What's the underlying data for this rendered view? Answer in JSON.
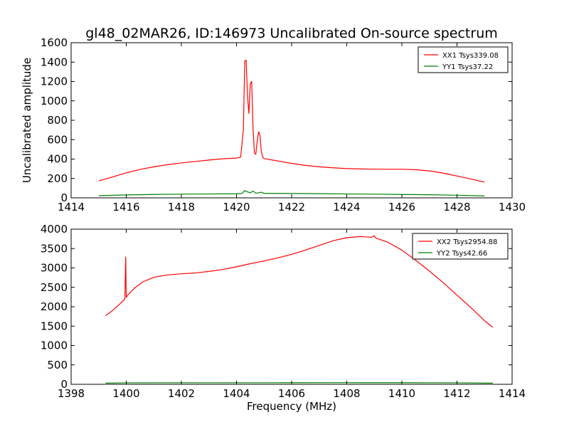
{
  "chart_data": [
    {
      "type": "line",
      "title": "gl48_02MAR26, ID:146973 Uncalibrated On-source spectrum",
      "xlabel": "",
      "ylabel": "Uncalibrated amplitude",
      "xlim": [
        1414,
        1430
      ],
      "ylim": [
        0,
        1600
      ],
      "xticks": [
        1414,
        1416,
        1418,
        1420,
        1422,
        1424,
        1426,
        1428,
        1430
      ],
      "yticks": [
        0,
        200,
        400,
        600,
        800,
        1000,
        1200,
        1400,
        1600
      ],
      "legend_position": "top-right",
      "series": [
        {
          "name": "XX1 Tsys339.08",
          "color": "#ff0000",
          "x": [
            1415.0,
            1415.5,
            1416.0,
            1416.5,
            1417.0,
            1417.5,
            1418.0,
            1418.5,
            1419.0,
            1419.5,
            1420.0,
            1420.15,
            1420.25,
            1420.3,
            1420.35,
            1420.4,
            1420.45,
            1420.5,
            1420.55,
            1420.6,
            1420.65,
            1420.7,
            1420.75,
            1420.8,
            1420.85,
            1420.9,
            1420.95,
            1421.0,
            1421.2,
            1421.5,
            1422.0,
            1422.5,
            1423.0,
            1423.5,
            1424.0,
            1424.5,
            1425.0,
            1425.5,
            1426.0,
            1426.5,
            1427.0,
            1427.5,
            1428.0,
            1428.5,
            1429.0
          ],
          "y": [
            175,
            215,
            258,
            293,
            320,
            342,
            360,
            375,
            390,
            403,
            410,
            420,
            700,
            1410,
            1420,
            1050,
            870,
            1180,
            1200,
            720,
            460,
            450,
            580,
            680,
            650,
            480,
            420,
            405,
            395,
            380,
            355,
            335,
            320,
            310,
            302,
            298,
            296,
            295,
            295,
            290,
            278,
            255,
            225,
            195,
            162
          ]
        },
        {
          "name": "YY1 Tsys37.22",
          "color": "#008000",
          "x": [
            1415.0,
            1416.0,
            1417.0,
            1418.0,
            1419.0,
            1420.0,
            1420.2,
            1420.3,
            1420.4,
            1420.5,
            1420.6,
            1420.7,
            1420.8,
            1420.9,
            1421.0,
            1422.0,
            1423.0,
            1424.0,
            1425.0,
            1426.0,
            1427.0,
            1428.0,
            1429.0
          ],
          "y": [
            22,
            30,
            35,
            38,
            40,
            42,
            45,
            75,
            62,
            52,
            70,
            48,
            52,
            58,
            46,
            45,
            43,
            40,
            38,
            35,
            32,
            27,
            20
          ]
        }
      ]
    },
    {
      "type": "line",
      "title": "",
      "xlabel": "Frequency (MHz)",
      "ylabel": "",
      "xlim": [
        1398,
        1414
      ],
      "ylim": [
        0,
        4000
      ],
      "xticks": [
        1398,
        1400,
        1402,
        1404,
        1406,
        1408,
        1410,
        1412,
        1414
      ],
      "yticks": [
        0,
        500,
        1000,
        1500,
        2000,
        2500,
        3000,
        3500,
        4000
      ],
      "legend_position": "top-right",
      "series": [
        {
          "name": "XX2 Tsys2954.88",
          "color": "#ff0000",
          "x": [
            1399.25,
            1399.5,
            1399.75,
            1399.95,
            1399.98,
            1400.0,
            1400.02,
            1400.05,
            1400.3,
            1400.6,
            1401.0,
            1401.5,
            1402.0,
            1402.5,
            1403.0,
            1403.5,
            1404.0,
            1404.5,
            1405.0,
            1405.5,
            1406.0,
            1406.5,
            1407.0,
            1407.5,
            1408.0,
            1408.5,
            1408.9,
            1409.0,
            1409.05,
            1409.1,
            1409.5,
            1410.0,
            1410.5,
            1411.0,
            1411.5,
            1412.0,
            1412.5,
            1413.0,
            1413.3
          ],
          "y": [
            1770,
            1900,
            2060,
            2200,
            3280,
            2240,
            2260,
            2300,
            2480,
            2640,
            2760,
            2820,
            2850,
            2870,
            2910,
            2960,
            3030,
            3110,
            3180,
            3260,
            3350,
            3460,
            3580,
            3700,
            3780,
            3810,
            3790,
            3830,
            3770,
            3760,
            3660,
            3460,
            3200,
            2920,
            2620,
            2300,
            1980,
            1640,
            1470
          ]
        },
        {
          "name": "YY2 Tsys42.66",
          "color": "#008000",
          "x": [
            1399.25,
            1400.0,
            1402.0,
            1404.0,
            1406.0,
            1408.0,
            1410.0,
            1412.0,
            1413.3
          ],
          "y": [
            30,
            38,
            40,
            40,
            41,
            42,
            41,
            38,
            30
          ]
        }
      ]
    }
  ]
}
